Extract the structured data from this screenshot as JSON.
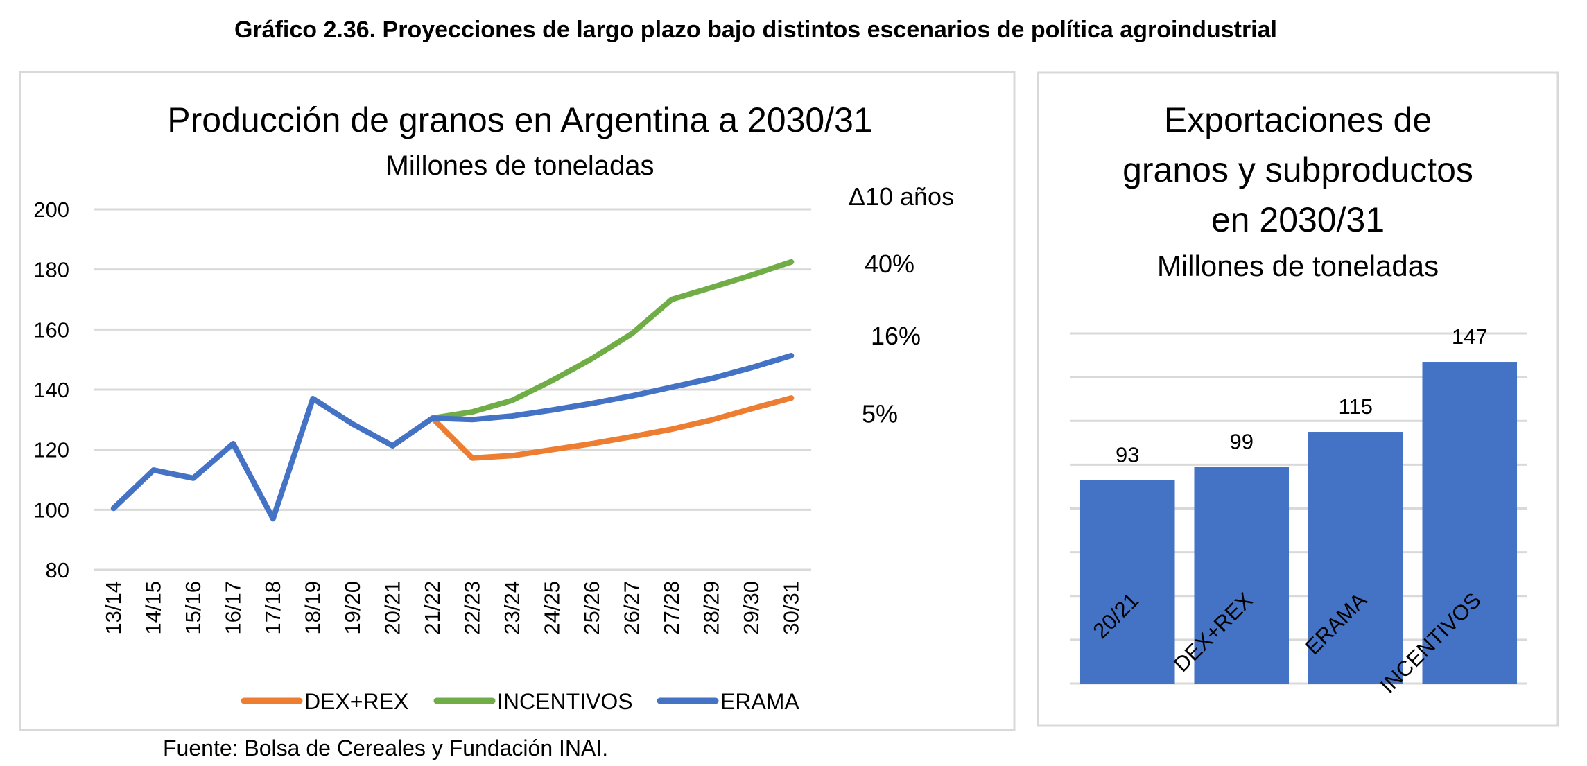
{
  "figure": {
    "title": "Gráfico 2.36. Proyecciones de largo plazo bajo distintos escenarios de política agroindustrial",
    "source": "Fuente: Bolsa de Cereales y Fundación INAI."
  },
  "chart_data": [
    {
      "type": "line",
      "title": "Producción de granos en Argentina a 2030/31",
      "subtitle": "Millones de toneladas",
      "xlabel": "",
      "ylabel": "",
      "ylim": [
        80,
        200
      ],
      "yticks": [
        80,
        100,
        120,
        140,
        160,
        180,
        200
      ],
      "grid": true,
      "legend_position": "bottom",
      "x": [
        "13/14",
        "14/15",
        "15/16",
        "16/17",
        "17/18",
        "18/19",
        "19/20",
        "20/21",
        "21/22",
        "22/23",
        "23/24",
        "24/25",
        "25/26",
        "26/27",
        "27/28",
        "28/29",
        "29/30",
        "30/31"
      ],
      "series": [
        {
          "name": "DEX+REX",
          "color": "#ED7D31",
          "values": [
            null,
            null,
            null,
            null,
            null,
            null,
            null,
            null,
            130.5,
            117.2,
            118.0,
            120.0,
            122.0,
            124.3,
            126.8,
            129.9,
            133.6,
            137.2
          ]
        },
        {
          "name": "INCENTIVOS",
          "color": "#70AD47",
          "values": [
            null,
            null,
            null,
            null,
            null,
            null,
            null,
            null,
            130.5,
            132.6,
            136.4,
            143.0,
            150.3,
            158.6,
            170.0,
            174.0,
            178.1,
            182.5
          ]
        },
        {
          "name": "ERAMA",
          "color": "#4472C4",
          "values": [
            100.5,
            113.2,
            110.5,
            122.0,
            97.0,
            137.0,
            128.5,
            121.3,
            130.5,
            130.0,
            131.2,
            133.2,
            135.4,
            137.9,
            140.8,
            143.7,
            147.3,
            151.3
          ]
        }
      ],
      "annotations": {
        "header": "Δ10 años",
        "labels": [
          {
            "text": "40%",
            "series": "INCENTIVOS",
            "value": 182
          },
          {
            "text": "16%",
            "series": "ERAMA",
            "value": 158
          },
          {
            "text": "5%",
            "series": "DEX+REX",
            "value": 132
          }
        ]
      },
      "legend_order": [
        "DEX+REX",
        "INCENTIVOS",
        "ERAMA"
      ]
    },
    {
      "type": "bar",
      "title_lines": [
        "Exportaciones de",
        "granos y subproductos",
        "en 2030/31"
      ],
      "subtitle": "Millones de toneladas",
      "xlabel": "",
      "ylabel": "",
      "ylim": [
        0,
        160
      ],
      "gridlines": [
        0,
        20,
        40,
        60,
        80,
        100,
        120,
        140,
        160
      ],
      "y_tick_labels_visible": false,
      "grid": true,
      "categories": [
        "20/21",
        "DEX+REX",
        "ERAMA",
        "INCENTIVOS"
      ],
      "values": [
        93,
        99,
        115,
        147
      ],
      "data_labels": [
        "93",
        "99",
        "115",
        "147"
      ],
      "color": "#4472C4"
    }
  ],
  "style": {
    "gridline_color": "#D9D9D9",
    "panel_border_color": "#D9D9D9"
  }
}
